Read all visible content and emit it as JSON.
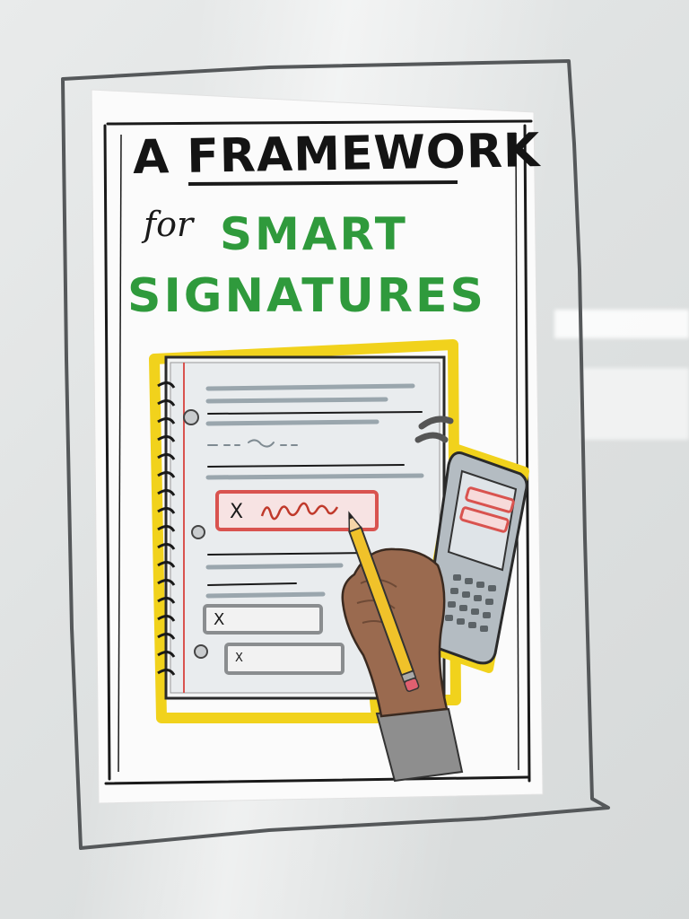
{
  "poster": {
    "title_line1": "A FRAMEWORK",
    "title_for": "for",
    "title_line2": "SMART",
    "title_line3": "SIGNATURES",
    "signature_x": "X",
    "field_x_1": "X",
    "field_x_2": "X"
  },
  "colors": {
    "title_black": "#141414",
    "title_green": "#2f9a3c",
    "highlight_yellow": "#f1d21c",
    "signature_red": "#d9534f",
    "pencil_yellow": "#f0c22a",
    "skin": "#9a6a4f"
  }
}
